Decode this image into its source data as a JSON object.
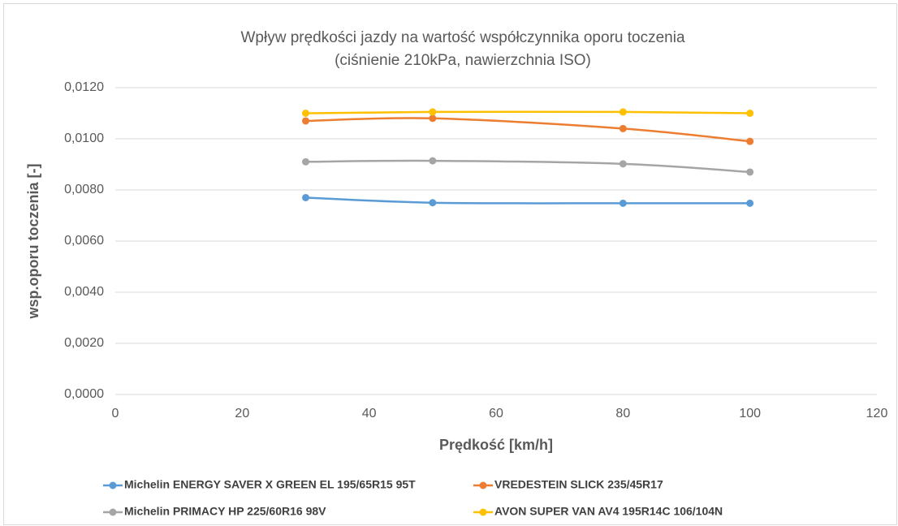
{
  "chart_data": {
    "type": "line",
    "title": "Wpływ prędkości jazdy na wartość współczynnika oporu toczenia",
    "subtitle": "(ciśnienie 210kPa, nawierzchnia ISO)",
    "x_label": "Prędkość [km/h]",
    "y_label": "wsp.oporu toczenia [-]",
    "x": [
      30,
      50,
      80,
      100
    ],
    "series": [
      {
        "name": "Michelin ENERGY SAVER X GREEN EL 195/65R15 95T",
        "color": "#5b9bd5",
        "values": [
          0.0077,
          0.0075,
          0.00748,
          0.00748
        ]
      },
      {
        "name": "VREDESTEIN SLICK 235/45R17",
        "color": "#ed7d31",
        "values": [
          0.0107,
          0.0108,
          0.0104,
          0.0099
        ]
      },
      {
        "name": "Michelin PRIMACY HP 225/60R16 98V",
        "color": "#a5a5a5",
        "values": [
          0.0091,
          0.00914,
          0.00902,
          0.0087
        ]
      },
      {
        "name": "AVON SUPER VAN AV4 195R14C 106/104N",
        "color": "#ffc000",
        "values": [
          0.011,
          0.01105,
          0.01105,
          0.011
        ]
      }
    ],
    "xlim": [
      0,
      120
    ],
    "xticks": [
      0,
      20,
      40,
      60,
      80,
      100,
      120
    ],
    "ylim": [
      0,
      0.012
    ],
    "yticks": [
      {
        "value": 0,
        "label": "0,0000"
      },
      {
        "value": 0.002,
        "label": "0,0020"
      },
      {
        "value": 0.004,
        "label": "0,0040"
      },
      {
        "value": 0.006,
        "label": "0,0060"
      },
      {
        "value": 0.008,
        "label": "0,0080"
      },
      {
        "value": 0.01,
        "label": "0,0100"
      },
      {
        "value": 0.012,
        "label": "0,0120"
      }
    ],
    "grid": true,
    "smooth": true,
    "legend": "bottom"
  }
}
